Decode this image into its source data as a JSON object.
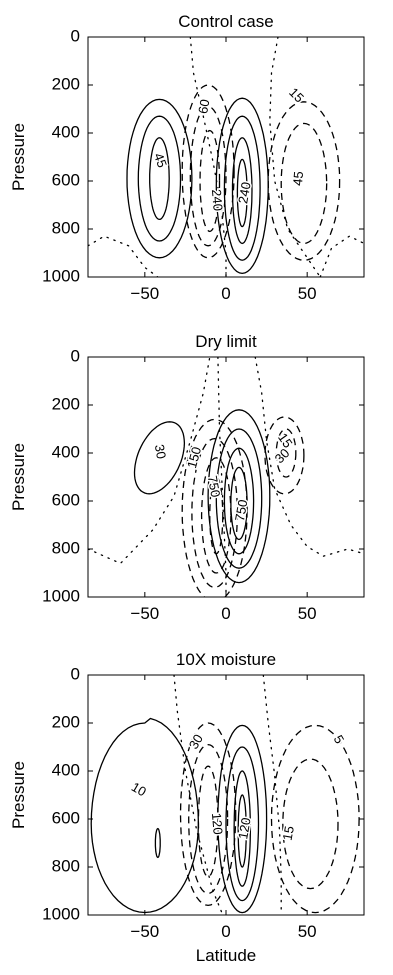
{
  "chart_data": [
    {
      "type": "contour",
      "title": "Control case",
      "xlabel": "",
      "ylabel": "Pressure",
      "xlim": [
        -85,
        85
      ],
      "ylim": [
        1000,
        0
      ],
      "xticks": [
        -50,
        0,
        50
      ],
      "yticks": [
        0,
        200,
        400,
        600,
        800,
        1000
      ],
      "contour_labels": [
        {
          "text": "45",
          "x": -41,
          "y": 515,
          "rotation": 70
        },
        {
          "text": "60",
          "x": -13,
          "y": 290,
          "rotation": -80
        },
        {
          "text": "240",
          "x": -6,
          "y": 680,
          "rotation": 85
        },
        {
          "text": "240",
          "x": 12,
          "y": 650,
          "rotation": -80
        },
        {
          "text": "15",
          "x": 43,
          "y": 245,
          "rotation": 45
        },
        {
          "text": "45",
          "x": 45,
          "y": 590,
          "rotation": -85
        }
      ]
    },
    {
      "type": "contour",
      "title": "Dry limit",
      "xlabel": "",
      "ylabel": "Pressure",
      "xlim": [
        -85,
        85
      ],
      "ylim": [
        1000,
        0
      ],
      "xticks": [
        -50,
        0,
        50
      ],
      "yticks": [
        0,
        200,
        400,
        600,
        800,
        1000
      ],
      "contour_labels": [
        {
          "text": "30",
          "x": -41,
          "y": 395,
          "rotation": 80
        },
        {
          "text": "150",
          "x": -19,
          "y": 420,
          "rotation": -75
        },
        {
          "text": "750",
          "x": -8,
          "y": 540,
          "rotation": 80
        },
        {
          "text": "750",
          "x": 10,
          "y": 640,
          "rotation": -80
        },
        {
          "text": "15",
          "x": 36,
          "y": 350,
          "rotation": 55
        },
        {
          "text": "30",
          "x": 35,
          "y": 415,
          "rotation": -45
        }
      ]
    },
    {
      "type": "contour",
      "title": "10X moisture",
      "xlabel": "Latitude",
      "ylabel": "Pressure",
      "xlim": [
        -85,
        85
      ],
      "ylim": [
        1000,
        0
      ],
      "xticks": [
        -50,
        0,
        50
      ],
      "yticks": [
        0,
        200,
        400,
        600,
        800,
        1000
      ],
      "contour_labels": [
        {
          "text": "10",
          "x": -54,
          "y": 480,
          "rotation": 30
        },
        {
          "text": "30",
          "x": -18,
          "y": 280,
          "rotation": -60
        },
        {
          "text": "120",
          "x": -6,
          "y": 620,
          "rotation": 85
        },
        {
          "text": "120",
          "x": 12,
          "y": 640,
          "rotation": -80
        },
        {
          "text": "5",
          "x": 69,
          "y": 270,
          "rotation": 60
        },
        {
          "text": "15",
          "x": 39,
          "y": 660,
          "rotation": -80
        }
      ]
    }
  ]
}
